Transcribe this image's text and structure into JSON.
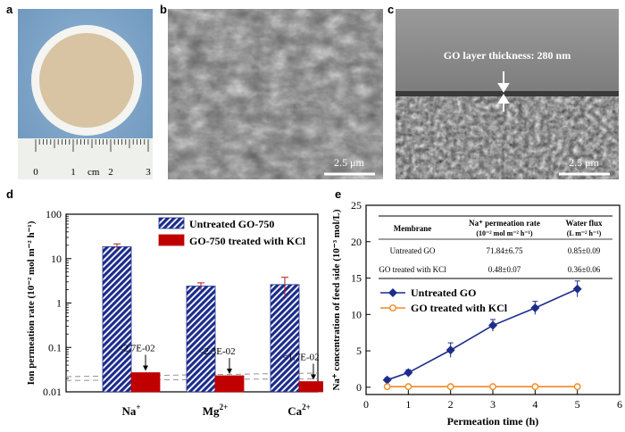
{
  "panels": {
    "a": {
      "label": "a",
      "ruler_numbers": [
        "0",
        "1",
        "2",
        "3"
      ],
      "ruler_unit": "cm",
      "colors": {
        "background": "#7fa6c9",
        "ring": "#f4f4f0",
        "membrane": "#d8c4a2"
      }
    },
    "b": {
      "label": "b",
      "scalebar": "2.5 μm"
    },
    "c": {
      "label": "c",
      "annotation": "GO layer thickness: 280 nm",
      "scalebar": "2.5 μm"
    },
    "d": {
      "label": "d"
    },
    "e": {
      "label": "e"
    }
  },
  "chart_data": [
    {
      "type": "bar",
      "panel": "d",
      "categories": [
        "Na+",
        "Mg2+",
        "Ca2+"
      ],
      "category_labels": [
        {
          "base": "Na",
          "sup": "+"
        },
        {
          "base": "Mg",
          "sup": "2+"
        },
        {
          "base": "Ca",
          "sup": "2+"
        }
      ],
      "ylabel": "Ion permeation rate (10⁻² mol m⁻² h⁻¹)",
      "yscale": "log",
      "ylim": [
        0.01,
        100
      ],
      "yticks": [
        "0.01",
        "0.1",
        "1",
        "10",
        "100"
      ],
      "legend_position": "top-right",
      "series": [
        {
          "name": "Untreated GO-750",
          "color": "#1c2c8c",
          "pattern": "hatch",
          "values": [
            18.5,
            2.4,
            2.6
          ],
          "errors": [
            3.0,
            0.45,
            1.2
          ]
        },
        {
          "name": "GO-750 treated with KCl",
          "color": "#c00000",
          "pattern": "solid",
          "values": [
            0.027,
            0.023,
            0.017
          ],
          "errors": [
            0,
            0,
            0
          ]
        }
      ],
      "annotations": [
        "<2.7E-02",
        "<2.3E-02",
        "<1.7E-02"
      ],
      "dashed_lines": [
        0.022,
        0.018
      ]
    },
    {
      "type": "line",
      "panel": "e",
      "xlabel": "Permeation time (h)",
      "ylabel": "Na⁺ concentration of feed side (10⁻³ mol/L)",
      "xlim": [
        0,
        6
      ],
      "ylim": [
        -1,
        25
      ],
      "xticks": [
        "0",
        "1",
        "2",
        "3",
        "4",
        "5",
        "6"
      ],
      "yticks": [
        "0",
        "5",
        "10",
        "15",
        "20",
        "25"
      ],
      "legend_position": "center-left",
      "series": [
        {
          "name": "Untreated GO",
          "color": "#1c2c8c",
          "marker": "diamond",
          "x": [
            0.5,
            1,
            2,
            3,
            4,
            5
          ],
          "y": [
            1.0,
            2.0,
            5.1,
            8.5,
            10.9,
            13.5
          ],
          "err": [
            0.3,
            0.4,
            1.0,
            0.8,
            0.9,
            1.1
          ]
        },
        {
          "name": "GO treated with KCl",
          "color": "#f08a20",
          "marker": "circle",
          "x": [
            0.5,
            1,
            2,
            3,
            4,
            5
          ],
          "y": [
            0.08,
            0.08,
            0.08,
            0.08,
            0.08,
            0.08
          ],
          "err": [
            0,
            0,
            0,
            0,
            0,
            0
          ]
        }
      ],
      "table": {
        "headers": [
          "Membrane",
          "Na⁺ permeation rate (10⁻² mol m⁻² h⁻¹)",
          "Water flux (L m⁻² h⁻¹)"
        ],
        "rows": [
          [
            "Untreated GO",
            "71.84±6.75",
            "0.85±0.09"
          ],
          [
            "GO treated with KCl",
            "0.48±0.07",
            "0.36±0.06"
          ]
        ]
      }
    }
  ]
}
